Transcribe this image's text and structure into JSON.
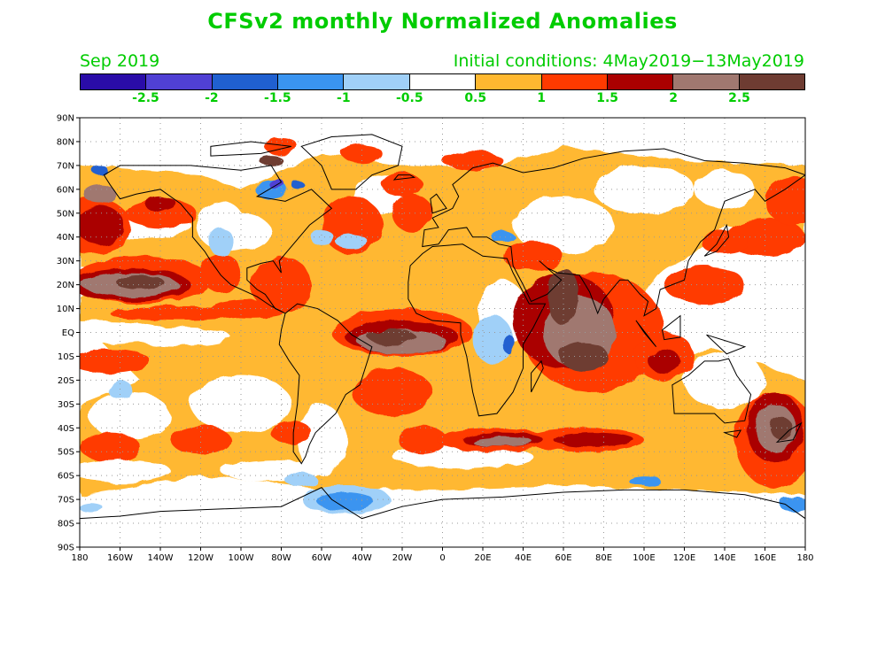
{
  "title": "CFSv2 monthly Normalized Anomalies",
  "month": "Sep 2019",
  "initial_conditions": "Initial conditions: 4May2019−13May2019",
  "colorbar": {
    "colors": [
      "#2a0ca8",
      "#5040d4",
      "#2060d0",
      "#3a94f0",
      "#a0d0f8",
      "#ffffff",
      "#ffb830",
      "#ff3a00",
      "#aa0000",
      "#a07870",
      "#6e3c32"
    ],
    "labels": [
      "-2.5",
      "-2",
      "-1.5",
      "-1",
      "-0.5",
      "0.5",
      "1",
      "1.5",
      "2",
      "2.5"
    ]
  },
  "axes": {
    "lat_labels": [
      "90N",
      "80N",
      "70N",
      "60N",
      "50N",
      "40N",
      "30N",
      "20N",
      "10N",
      "EQ",
      "10S",
      "20S",
      "30S",
      "40S",
      "50S",
      "60S",
      "70S",
      "80S",
      "90S"
    ],
    "lon_labels": [
      "180",
      "160W",
      "140W",
      "120W",
      "100W",
      "80W",
      "60W",
      "40W",
      "20W",
      "0",
      "20E",
      "40E",
      "60E",
      "80E",
      "100E",
      "120E",
      "140E",
      "160E",
      "180"
    ]
  },
  "anomaly_regions": [
    {
      "name": "North Pacific warm band",
      "level": "1",
      "lon": [
        -180,
        -120
      ],
      "lat": [
        30,
        58
      ]
    },
    {
      "name": "Northeast Pacific warm core",
      "level": "2.5",
      "lon": [
        -170,
        -138
      ],
      "lat": [
        14,
        25
      ]
    },
    {
      "name": "Tropical Atlantic warm core",
      "level": "2.5",
      "lon": [
        -35,
        12
      ],
      "lat": [
        -10,
        8
      ]
    },
    {
      "name": "Indian Ocean warm core",
      "level": "2.5",
      "lon": [
        45,
        100
      ],
      "lat": [
        -18,
        28
      ]
    },
    {
      "name": "Tasman Sea warm core",
      "level": "2.5",
      "lon": [
        150,
        178
      ],
      "lat": [
        -55,
        -25
      ]
    },
    {
      "name": "Hudson Bay cold anomaly",
      "level": "-1.5",
      "lon": [
        -92,
        -78
      ],
      "lat": [
        56,
        65
      ]
    },
    {
      "name": "Southern Atlantic cold anomaly",
      "level": "-1",
      "lon": [
        -60,
        -30
      ],
      "lat": [
        -72,
        -60
      ]
    },
    {
      "name": "Central Africa cold anomaly",
      "level": "-1",
      "lon": [
        15,
        40
      ],
      "lat": [
        -10,
        8
      ]
    }
  ]
}
